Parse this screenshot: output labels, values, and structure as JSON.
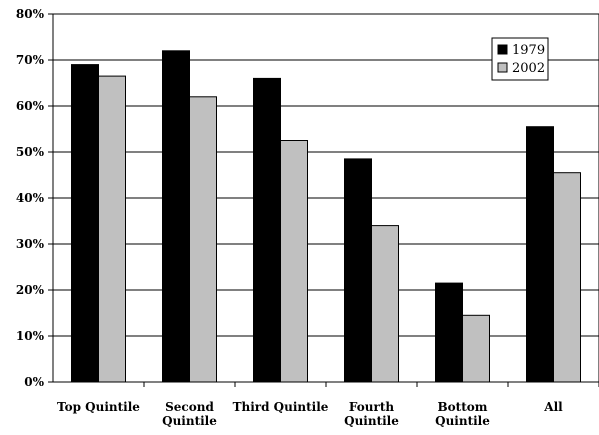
{
  "chart_data": {
    "type": "bar",
    "categories": [
      [
        "Top Quintile"
      ],
      [
        "Second",
        "Quintile"
      ],
      [
        "Third Quintile"
      ],
      [
        "Fourth",
        "Quintile"
      ],
      [
        "Bottom",
        "Quintile"
      ],
      [
        "All"
      ]
    ],
    "series": [
      {
        "name": "1979",
        "color": "#000000",
        "values": [
          69,
          72,
          66,
          48.5,
          21.5,
          55.5
        ]
      },
      {
        "name": "2002",
        "color": "#c0c0c0",
        "values": [
          66.5,
          62,
          52.5,
          34,
          14.5,
          45.5
        ]
      }
    ],
    "yticks": [
      "0%",
      "10%",
      "20%",
      "30%",
      "40%",
      "50%",
      "60%",
      "70%",
      "80%"
    ],
    "ylim": [
      0,
      80
    ],
    "grid": true,
    "legend_position": "top-right",
    "title": "",
    "xlabel": "",
    "ylabel": ""
  }
}
